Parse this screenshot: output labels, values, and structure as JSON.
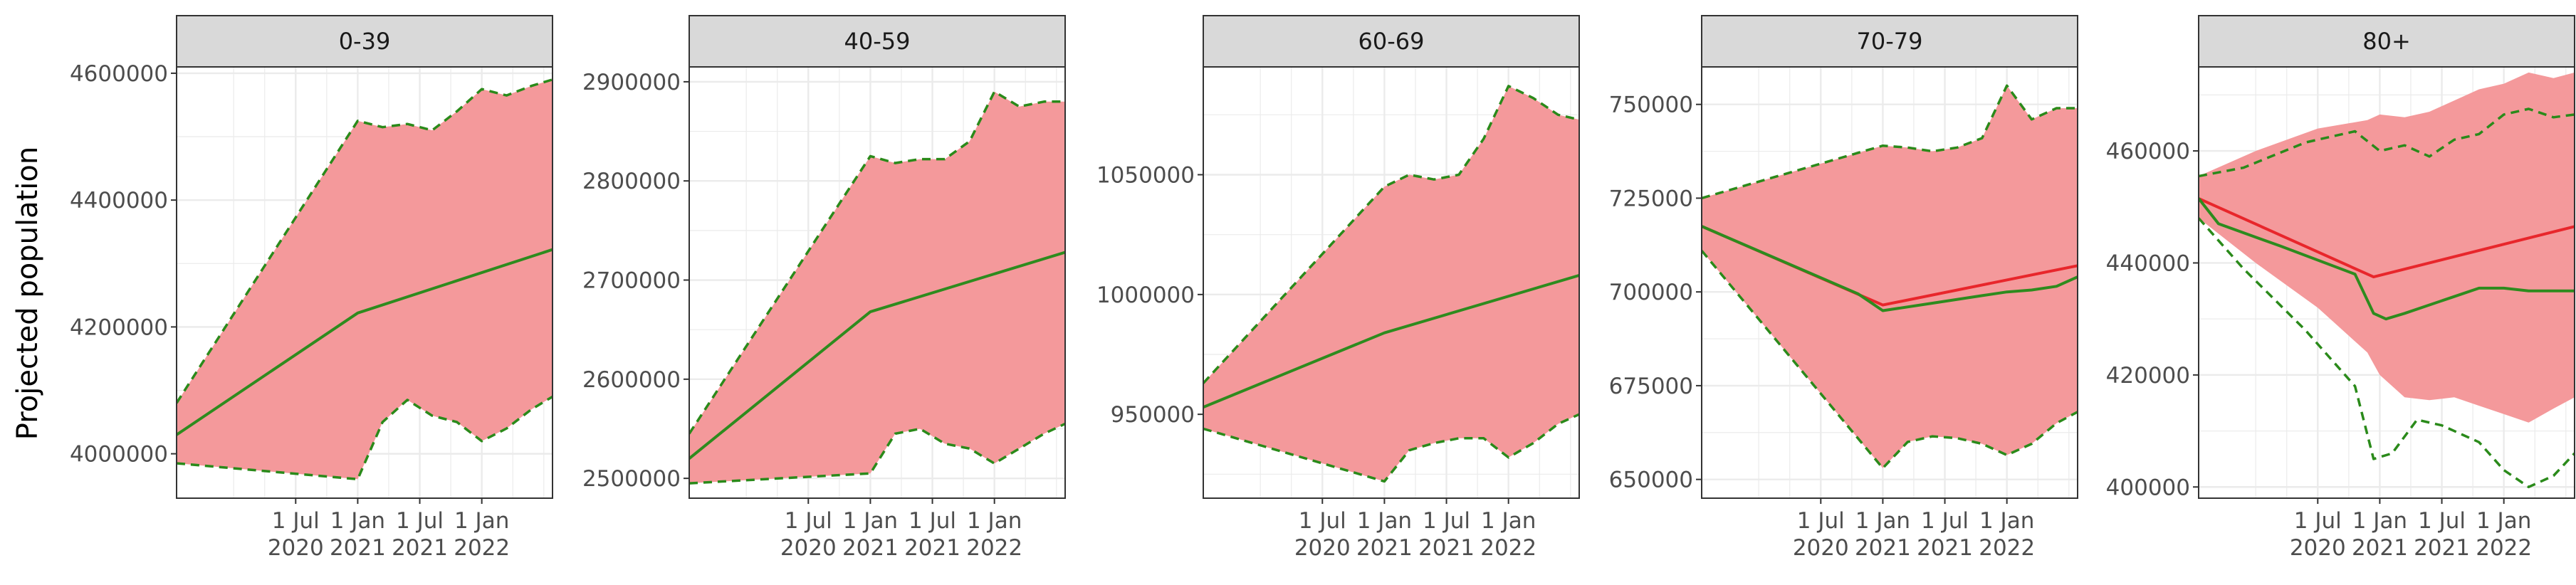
{
  "figure": {
    "ylabel": "Projected population"
  },
  "colors": {
    "ribbon": "#f4999b",
    "projection_line": "#e8262b",
    "observed_line": "#2e8b1e",
    "bound_line": "#2a8a1a",
    "strip_fill": "#d9d9d9",
    "grid": "#ebebeb"
  },
  "chart_data": [
    {
      "type": "line",
      "title": "0-39",
      "x_ticks": [
        "1 Jul\n2020",
        "1 Jan\n2021",
        "1 Jul\n2021",
        "1 Jan\n2022"
      ],
      "x_tick_values": [
        2020.5,
        2021.0,
        2021.5,
        2022.0
      ],
      "x": [
        2019.54,
        2021.0,
        2022.57
      ],
      "xlim": [
        2019.54,
        2022.57
      ],
      "ylim": [
        3930000,
        4610000
      ],
      "y_ticks": [
        4000000,
        4200000,
        4400000,
        4600000
      ],
      "y_tick_labels": [
        "4000000",
        "4200000",
        "4400000",
        "4600000"
      ],
      "grid": true,
      "ribbon": {
        "x": [
          2019.54,
          2021.0,
          2021.2,
          2021.4,
          2021.6,
          2021.8,
          2022.0,
          2022.2,
          2022.4,
          2022.57
        ],
        "upper": [
          4080000,
          4525000,
          4515000,
          4520000,
          4510000,
          4540000,
          4575000,
          4565000,
          4580000,
          4590000
        ],
        "lower": [
          3985000,
          3960000,
          4050000,
          4085000,
          4060000,
          4050000,
          4020000,
          4040000,
          4070000,
          4090000
        ]
      },
      "series": [
        {
          "name": "",
          "style": "solid",
          "color": "#2e8b1e",
          "x": [
            2019.54,
            2021.0,
            2022.57
          ],
          "values": [
            4030000,
            4222000,
            4322000
          ]
        },
        {
          "name": "",
          "style": "dashed",
          "color": "#2a8a1a",
          "x": [
            2019.54,
            2021.0,
            2021.2,
            2021.4,
            2021.6,
            2021.8,
            2022.0,
            2022.2,
            2022.4,
            2022.57
          ],
          "values": [
            4080000,
            4525000,
            4515000,
            4520000,
            4510000,
            4540000,
            4575000,
            4565000,
            4580000,
            4590000
          ]
        },
        {
          "name": "",
          "style": "dashed",
          "color": "#2a8a1a",
          "x": [
            2019.54,
            2021.0,
            2021.2,
            2021.4,
            2021.6,
            2021.8,
            2022.0,
            2022.2,
            2022.4,
            2022.57
          ],
          "values": [
            3985000,
            3960000,
            4050000,
            4085000,
            4060000,
            4050000,
            4020000,
            4040000,
            4070000,
            4090000
          ]
        }
      ]
    },
    {
      "type": "line",
      "title": "40-59",
      "x_ticks": [
        "1 Jul\n2020",
        "1 Jan\n2021",
        "1 Jul\n2021",
        "1 Jan\n2022"
      ],
      "x_tick_values": [
        2020.5,
        2021.0,
        2021.5,
        2022.0
      ],
      "x": [
        2019.54,
        2021.0,
        2022.57
      ],
      "xlim": [
        2019.54,
        2022.57
      ],
      "ylim": [
        2480000,
        2915000
      ],
      "y_ticks": [
        2500000,
        2600000,
        2700000,
        2800000,
        2900000
      ],
      "y_tick_labels": [
        "2500000",
        "2600000",
        "2700000",
        "2800000",
        "2900000"
      ],
      "grid": true,
      "ribbon": {
        "x": [
          2019.54,
          2021.0,
          2021.2,
          2021.4,
          2021.6,
          2021.8,
          2022.0,
          2022.2,
          2022.4,
          2022.57
        ],
        "upper": [
          2545000,
          2825000,
          2818000,
          2822000,
          2822000,
          2840000,
          2890000,
          2875000,
          2880000,
          2880000
        ],
        "lower": [
          2495000,
          2505000,
          2545000,
          2550000,
          2535000,
          2530000,
          2515000,
          2530000,
          2545000,
          2555000
        ]
      },
      "series": [
        {
          "name": "",
          "style": "solid",
          "color": "#2e8b1e",
          "x": [
            2019.54,
            2021.0,
            2022.57
          ],
          "values": [
            2520000,
            2668000,
            2728000
          ]
        },
        {
          "name": "",
          "style": "dashed",
          "color": "#2a8a1a",
          "x": [
            2019.54,
            2021.0,
            2021.2,
            2021.4,
            2021.6,
            2021.8,
            2022.0,
            2022.2,
            2022.4,
            2022.57
          ],
          "values": [
            2545000,
            2825000,
            2818000,
            2822000,
            2822000,
            2840000,
            2890000,
            2875000,
            2880000,
            2880000
          ]
        },
        {
          "name": "",
          "style": "dashed",
          "color": "#2a8a1a",
          "x": [
            2019.54,
            2021.0,
            2021.2,
            2021.4,
            2021.6,
            2021.8,
            2022.0,
            2022.2,
            2022.4,
            2022.57
          ],
          "values": [
            2495000,
            2505000,
            2545000,
            2550000,
            2535000,
            2530000,
            2515000,
            2530000,
            2545000,
            2555000
          ]
        }
      ]
    },
    {
      "type": "line",
      "title": "60-69",
      "x_ticks": [
        "1 Jul\n2020",
        "1 Jan\n2021",
        "1 Jul\n2021",
        "1 Jan\n2022"
      ],
      "x_tick_values": [
        2020.5,
        2021.0,
        2021.5,
        2022.0
      ],
      "x": [
        2019.54,
        2021.0,
        2022.57
      ],
      "xlim": [
        2019.54,
        2022.57
      ],
      "ylim": [
        915000,
        1095000
      ],
      "y_ticks": [
        950000,
        1000000,
        1050000
      ],
      "y_tick_labels": [
        "950000",
        "1000000",
        "1050000"
      ],
      "grid": true,
      "ribbon": {
        "x": [
          2019.54,
          2021.0,
          2021.2,
          2021.4,
          2021.6,
          2021.8,
          2022.0,
          2022.2,
          2022.4,
          2022.57
        ],
        "upper": [
          963000,
          1045000,
          1050000,
          1048000,
          1050000,
          1065000,
          1087000,
          1082000,
          1075000,
          1073000
        ],
        "lower": [
          944000,
          922000,
          935000,
          938000,
          940000,
          940000,
          932000,
          938000,
          946000,
          950000
        ]
      },
      "series": [
        {
          "name": "",
          "style": "solid",
          "color": "#2e8b1e",
          "x": [
            2019.54,
            2021.0,
            2022.57
          ],
          "values": [
            953000,
            984000,
            1008000
          ]
        },
        {
          "name": "",
          "style": "dashed",
          "color": "#2a8a1a",
          "x": [
            2019.54,
            2021.0,
            2021.2,
            2021.4,
            2021.6,
            2021.8,
            2022.0,
            2022.2,
            2022.4,
            2022.57
          ],
          "values": [
            963000,
            1045000,
            1050000,
            1048000,
            1050000,
            1065000,
            1087000,
            1082000,
            1075000,
            1073000
          ]
        },
        {
          "name": "",
          "style": "dashed",
          "color": "#2a8a1a",
          "x": [
            2019.54,
            2021.0,
            2021.2,
            2021.4,
            2021.6,
            2021.8,
            2022.0,
            2022.2,
            2022.4,
            2022.57
          ],
          "values": [
            944000,
            922000,
            935000,
            938000,
            940000,
            940000,
            932000,
            938000,
            946000,
            950000
          ]
        }
      ]
    },
    {
      "type": "line",
      "title": "70-79",
      "x_ticks": [
        "1 Jul\n2020",
        "1 Jan\n2021",
        "1 Jul\n2021",
        "1 Jan\n2022"
      ],
      "x_tick_values": [
        2020.5,
        2021.0,
        2021.5,
        2022.0
      ],
      "x": [
        2019.54,
        2021.0,
        2022.57
      ],
      "xlim": [
        2019.54,
        2022.57
      ],
      "ylim": [
        645000,
        760000
      ],
      "y_ticks": [
        650000,
        675000,
        700000,
        725000,
        750000
      ],
      "y_tick_labels": [
        "650000",
        "675000",
        "700000",
        "725000",
        "750000"
      ],
      "grid": true,
      "ribbon": {
        "x": [
          2019.54,
          2021.0,
          2021.2,
          2021.4,
          2021.6,
          2021.8,
          2022.0,
          2022.2,
          2022.4,
          2022.57
        ],
        "upper": [
          725000,
          739000,
          738500,
          737500,
          738500,
          741000,
          755000,
          746000,
          749000,
          749000
        ],
        "lower": [
          711000,
          653000,
          660000,
          661500,
          661000,
          659500,
          656500,
          659500,
          665000,
          668000
        ]
      },
      "series": [
        {
          "name": "",
          "style": "solid",
          "color": "#e8262b",
          "x": [
            2019.54,
            2021.0,
            2022.57
          ],
          "values": [
            717500,
            696500,
            707000
          ]
        },
        {
          "name": "",
          "style": "solid",
          "color": "#2e8b1e",
          "x": [
            2019.54,
            2020.8,
            2021.0,
            2021.4,
            2021.8,
            2022.0,
            2022.2,
            2022.4,
            2022.57
          ],
          "values": [
            717500,
            699500,
            695000,
            697000,
            699000,
            700000,
            700500,
            701500,
            704000
          ]
        },
        {
          "name": "",
          "style": "dashed",
          "color": "#2a8a1a",
          "x": [
            2019.54,
            2021.0,
            2021.2,
            2021.4,
            2021.6,
            2021.8,
            2022.0,
            2022.2,
            2022.4,
            2022.57
          ],
          "values": [
            725000,
            739000,
            738500,
            737500,
            738500,
            741000,
            755000,
            746000,
            749000,
            749000
          ]
        },
        {
          "name": "",
          "style": "dashed",
          "color": "#2a8a1a",
          "x": [
            2019.54,
            2021.0,
            2021.2,
            2021.4,
            2021.6,
            2021.8,
            2022.0,
            2022.2,
            2022.4,
            2022.57
          ],
          "values": [
            711000,
            653000,
            660000,
            661500,
            661000,
            659500,
            656500,
            659500,
            665000,
            668000
          ]
        }
      ]
    },
    {
      "type": "line",
      "title": "80+",
      "x_ticks": [
        "1 Jul\n2020",
        "1 Jan\n2021",
        "1 Jul\n2021",
        "1 Jan\n2022"
      ],
      "x_tick_values": [
        2020.5,
        2021.0,
        2021.5,
        2022.0
      ],
      "x": [
        2019.54,
        2021.0,
        2022.57
      ],
      "xlim": [
        2019.54,
        2022.57
      ],
      "ylim": [
        398000,
        475000
      ],
      "y_ticks": [
        400000,
        420000,
        440000,
        460000
      ],
      "y_tick_labels": [
        "400000",
        "420000",
        "440000",
        "460000"
      ],
      "grid": true,
      "ribbon": {
        "x": [
          2019.54,
          2020.0,
          2020.5,
          2020.9,
          2021.0,
          2021.2,
          2021.4,
          2021.6,
          2021.8,
          2022.0,
          2022.2,
          2022.4,
          2022.57
        ],
        "upper": [
          455500,
          460000,
          464000,
          465500,
          466500,
          466000,
          467000,
          469000,
          471000,
          472000,
          474000,
          473000,
          474000
        ],
        "lower": [
          448000,
          440000,
          432000,
          424000,
          420000,
          416000,
          415500,
          416000,
          414500,
          413000,
          411500,
          414000,
          416000
        ]
      },
      "series": [
        {
          "name": "",
          "style": "solid",
          "color": "#e8262b",
          "x": [
            2019.54,
            2020.95,
            2022.57
          ],
          "values": [
            451500,
            437500,
            446500
          ]
        },
        {
          "name": "",
          "style": "solid",
          "color": "#2e8b1e",
          "x": [
            2019.54,
            2019.7,
            2020.2,
            2020.8,
            2020.95,
            2021.05,
            2021.2,
            2021.4,
            2021.6,
            2021.8,
            2022.0,
            2022.2,
            2022.57
          ],
          "values": [
            451500,
            447000,
            443000,
            438000,
            431000,
            430000,
            431000,
            432500,
            434000,
            435500,
            435500,
            435000,
            435000
          ]
        },
        {
          "name": "",
          "style": "dashed",
          "color": "#2a8a1a",
          "x": [
            2019.54,
            2019.9,
            2020.4,
            2020.8,
            2021.0,
            2021.2,
            2021.4,
            2021.6,
            2021.8,
            2022.0,
            2022.2,
            2022.4,
            2022.57
          ],
          "values": [
            455500,
            457000,
            461500,
            463500,
            460000,
            461000,
            459000,
            462000,
            463000,
            466500,
            467500,
            466000,
            466500
          ]
        },
        {
          "name": "",
          "style": "dashed",
          "color": "#2a8a1a",
          "x": [
            2019.54,
            2019.9,
            2020.4,
            2020.8,
            2020.95,
            2021.1,
            2021.3,
            2021.5,
            2021.8,
            2022.0,
            2022.2,
            2022.4,
            2022.57
          ],
          "values": [
            448000,
            439000,
            428000,
            418000,
            405000,
            406000,
            412000,
            411000,
            408000,
            403000,
            400000,
            402000,
            406000
          ]
        }
      ]
    }
  ]
}
